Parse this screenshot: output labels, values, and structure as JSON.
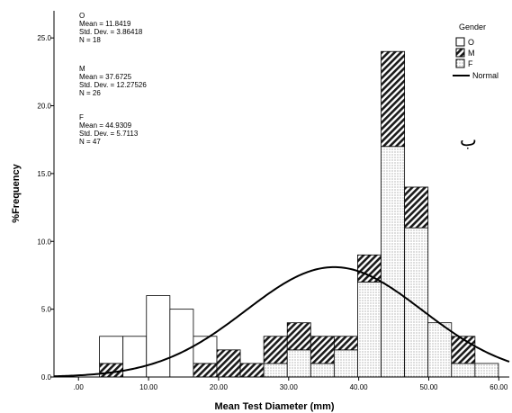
{
  "chart_data": {
    "type": "bar",
    "stacked": true,
    "title": "",
    "xlabel": "Mean Test Diameter (mm)",
    "ylabel": "%Frequency",
    "xlim": [
      -3.5,
      61.5
    ],
    "ylim": [
      0,
      27
    ],
    "xticks": [
      0,
      10,
      20,
      30,
      40,
      50,
      60
    ],
    "xtick_labels": [
      ".00",
      "10.00",
      "20.00",
      "30.00",
      "40.00",
      "50.00",
      "60.00"
    ],
    "yticks": [
      0,
      5,
      10,
      15,
      20,
      25
    ],
    "ytick_labels": [
      "0.0",
      "5.0",
      "10.0",
      "15.0",
      "20.0",
      "25.0"
    ],
    "bin_width": 3.35,
    "bin_starts": [
      3.0,
      6.35,
      9.7,
      13.05,
      16.4,
      19.75,
      23.1,
      26.45,
      29.8,
      33.15,
      36.5,
      39.85,
      43.2,
      46.55,
      49.9,
      53.25,
      56.6
    ],
    "series": [
      {
        "name": "F",
        "fill": "dotted",
        "values": [
          0,
          0,
          0,
          0,
          0,
          0,
          0,
          1,
          2,
          1,
          2,
          7,
          17,
          11,
          4,
          1,
          1
        ]
      },
      {
        "name": "M",
        "fill": "hatched",
        "values": [
          1,
          0,
          0,
          0,
          1,
          2,
          1,
          2,
          2,
          2,
          1,
          2,
          7,
          3,
          0,
          2,
          0
        ]
      },
      {
        "name": "O",
        "fill": "white",
        "values": [
          2,
          3,
          6,
          5,
          2,
          0,
          0,
          0,
          0,
          0,
          0,
          0,
          0,
          0,
          0,
          0,
          0
        ]
      }
    ],
    "normal_curve": {
      "name": "Normal",
      "peak_x": 36.5,
      "peak_y": 8.1,
      "sd": 12.6
    },
    "stats": [
      {
        "group": "O",
        "mean": "Mean = 11.8419",
        "sd": "Std. Dev. = 3.86418",
        "n": "N = 18"
      },
      {
        "group": "M",
        "mean": "Mean = 37.6725",
        "sd": "Std. Dev. = 12.27526",
        "n": "N = 26"
      },
      {
        "group": "F",
        "mean": "Mean = 44.9309",
        "sd": "Std. Dev. = 5.7113",
        "n": "N = 47"
      }
    ],
    "legend": {
      "title": "Gender",
      "placement": "top-right",
      "items": [
        {
          "label": "O",
          "fill": "white"
        },
        {
          "label": "M",
          "fill": "hatched"
        },
        {
          "label": "F",
          "fill": "dotted"
        },
        {
          "label": "Normal",
          "fill": "line"
        }
      ]
    },
    "annotation": "ب"
  }
}
